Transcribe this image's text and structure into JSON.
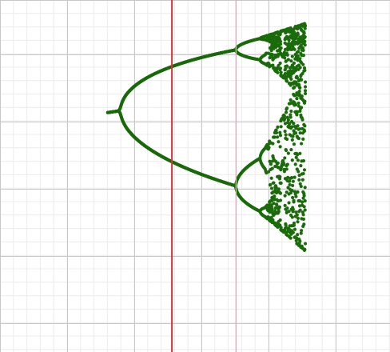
{
  "colors": {
    "background": "#ffffff",
    "minor_grid": "#ececec",
    "major_grid": "#c8c8c8",
    "points": "#1a6b0a",
    "red_line": "#d9333a",
    "pink_line": "#f2a0c0"
  },
  "chart_data": {
    "type": "scatter",
    "grid": true,
    "xlim": [
      2.53,
      4.05
    ],
    "ylim": [
      -0.06,
      1.0
    ],
    "series": [
      {
        "kind": "bifurcation-diagram",
        "param_range": [
          2.95,
          3.72
        ],
        "fixed_point_branch": {
          "param_from": 3.0,
          "param_to": 3.72
        },
        "period_doubling_at": [
          3.0,
          3.449,
          3.544
        ],
        "chaos_onset": 3.57,
        "values_shown_as_markers": true
      }
    ],
    "vertical_markers": [
      {
        "x": 3.2,
        "color": "red"
      },
      {
        "x": 3.45,
        "color": "pink"
      }
    ]
  }
}
